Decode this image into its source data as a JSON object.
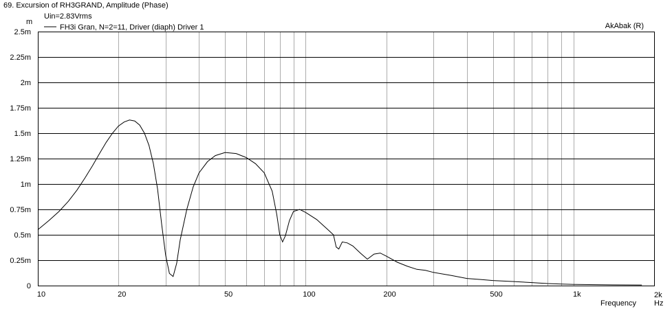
{
  "chart_data": {
    "type": "line",
    "title": "69. Excursion of RH3GRAND, Amplitude (Phase)",
    "annotation": "Uin=2.83Vrms",
    "watermark": "AkAbak (R)",
    "ylabel": "m",
    "xlabel": "Frequency",
    "xunit": "Hz",
    "xscale": "log",
    "xlim": [
      10,
      2000
    ],
    "ylim": [
      0,
      0.0025
    ],
    "grid": true,
    "legend_position": "top-left",
    "x_tick_labels": [
      {
        "value": 10,
        "label": "10"
      },
      {
        "value": 20,
        "label": "20"
      },
      {
        "value": 50,
        "label": "50"
      },
      {
        "value": 100,
        "label": "100"
      },
      {
        "value": 200,
        "label": "200"
      },
      {
        "value": 500,
        "label": "500"
      },
      {
        "value": 1000,
        "label": "1k"
      },
      {
        "value": 2000,
        "label": "2k"
      }
    ],
    "y_tick_labels": [
      {
        "value": 0,
        "label": "0"
      },
      {
        "value": 0.00025,
        "label": "0.25m"
      },
      {
        "value": 0.0005,
        "label": "0.5m"
      },
      {
        "value": 0.00075,
        "label": "0.75m"
      },
      {
        "value": 0.001,
        "label": "1m"
      },
      {
        "value": 0.00125,
        "label": "1.25m"
      },
      {
        "value": 0.0015,
        "label": "1.5m"
      },
      {
        "value": 0.00175,
        "label": "1.75m"
      },
      {
        "value": 0.002,
        "label": "2m"
      },
      {
        "value": 0.00225,
        "label": "2.25m"
      },
      {
        "value": 0.0025,
        "label": "2.5m"
      }
    ],
    "series": [
      {
        "name": "FH3i Gran, N=2=11, Driver (diaph) Driver 1",
        "color": "#000000",
        "points": [
          [
            10,
            0.00055
          ],
          [
            11,
            0.00064
          ],
          [
            12,
            0.00073
          ],
          [
            13,
            0.00083
          ],
          [
            14,
            0.00094
          ],
          [
            15,
            0.00106
          ],
          [
            16,
            0.00118
          ],
          [
            17,
            0.0013
          ],
          [
            18,
            0.00141
          ],
          [
            19,
            0.0015
          ],
          [
            20,
            0.00157
          ],
          [
            21,
            0.00161
          ],
          [
            22,
            0.00163
          ],
          [
            23,
            0.00162
          ],
          [
            24,
            0.00158
          ],
          [
            25,
            0.0015
          ],
          [
            26,
            0.00138
          ],
          [
            27,
            0.0012
          ],
          [
            28,
            0.00095
          ],
          [
            29,
            0.0006
          ],
          [
            30,
            0.0003
          ],
          [
            31,
            0.00012
          ],
          [
            32,
            9e-05
          ],
          [
            33,
            0.00022
          ],
          [
            34,
            0.00045
          ],
          [
            36,
            0.00075
          ],
          [
            38,
            0.00097
          ],
          [
            40,
            0.00111
          ],
          [
            43,
            0.00122
          ],
          [
            46,
            0.00128
          ],
          [
            50,
            0.00131
          ],
          [
            55,
            0.0013
          ],
          [
            60,
            0.00126
          ],
          [
            65,
            0.0012
          ],
          [
            70,
            0.00111
          ],
          [
            75,
            0.00093
          ],
          [
            78,
            0.0007
          ],
          [
            80,
            0.0005
          ],
          [
            82,
            0.00043
          ],
          [
            84,
            0.00049
          ],
          [
            87,
            0.00064
          ],
          [
            90,
            0.00073
          ],
          [
            95,
            0.00075
          ],
          [
            100,
            0.00072
          ],
          [
            110,
            0.00065
          ],
          [
            120,
            0.00056
          ],
          [
            127,
            0.0005
          ],
          [
            130,
            0.00038
          ],
          [
            133,
            0.00036
          ],
          [
            137,
            0.00043
          ],
          [
            143,
            0.00042
          ],
          [
            150,
            0.00039
          ],
          [
            160,
            0.00032
          ],
          [
            170,
            0.00026
          ],
          [
            180,
            0.00031
          ],
          [
            190,
            0.00032
          ],
          [
            200,
            0.00029
          ],
          [
            220,
            0.00023
          ],
          [
            240,
            0.00019
          ],
          [
            260,
            0.00016
          ],
          [
            280,
            0.00015
          ],
          [
            300,
            0.00013
          ],
          [
            350,
            0.0001
          ],
          [
            400,
            7e-05
          ],
          [
            450,
            6e-05
          ],
          [
            500,
            5e-05
          ],
          [
            600,
            4e-05
          ],
          [
            700,
            3e-05
          ],
          [
            800,
            2e-05
          ],
          [
            900,
            1.5e-05
          ],
          [
            1000,
            1.2e-05
          ],
          [
            1300,
            8e-06
          ],
          [
            1800,
            6e-06
          ]
        ]
      }
    ]
  }
}
